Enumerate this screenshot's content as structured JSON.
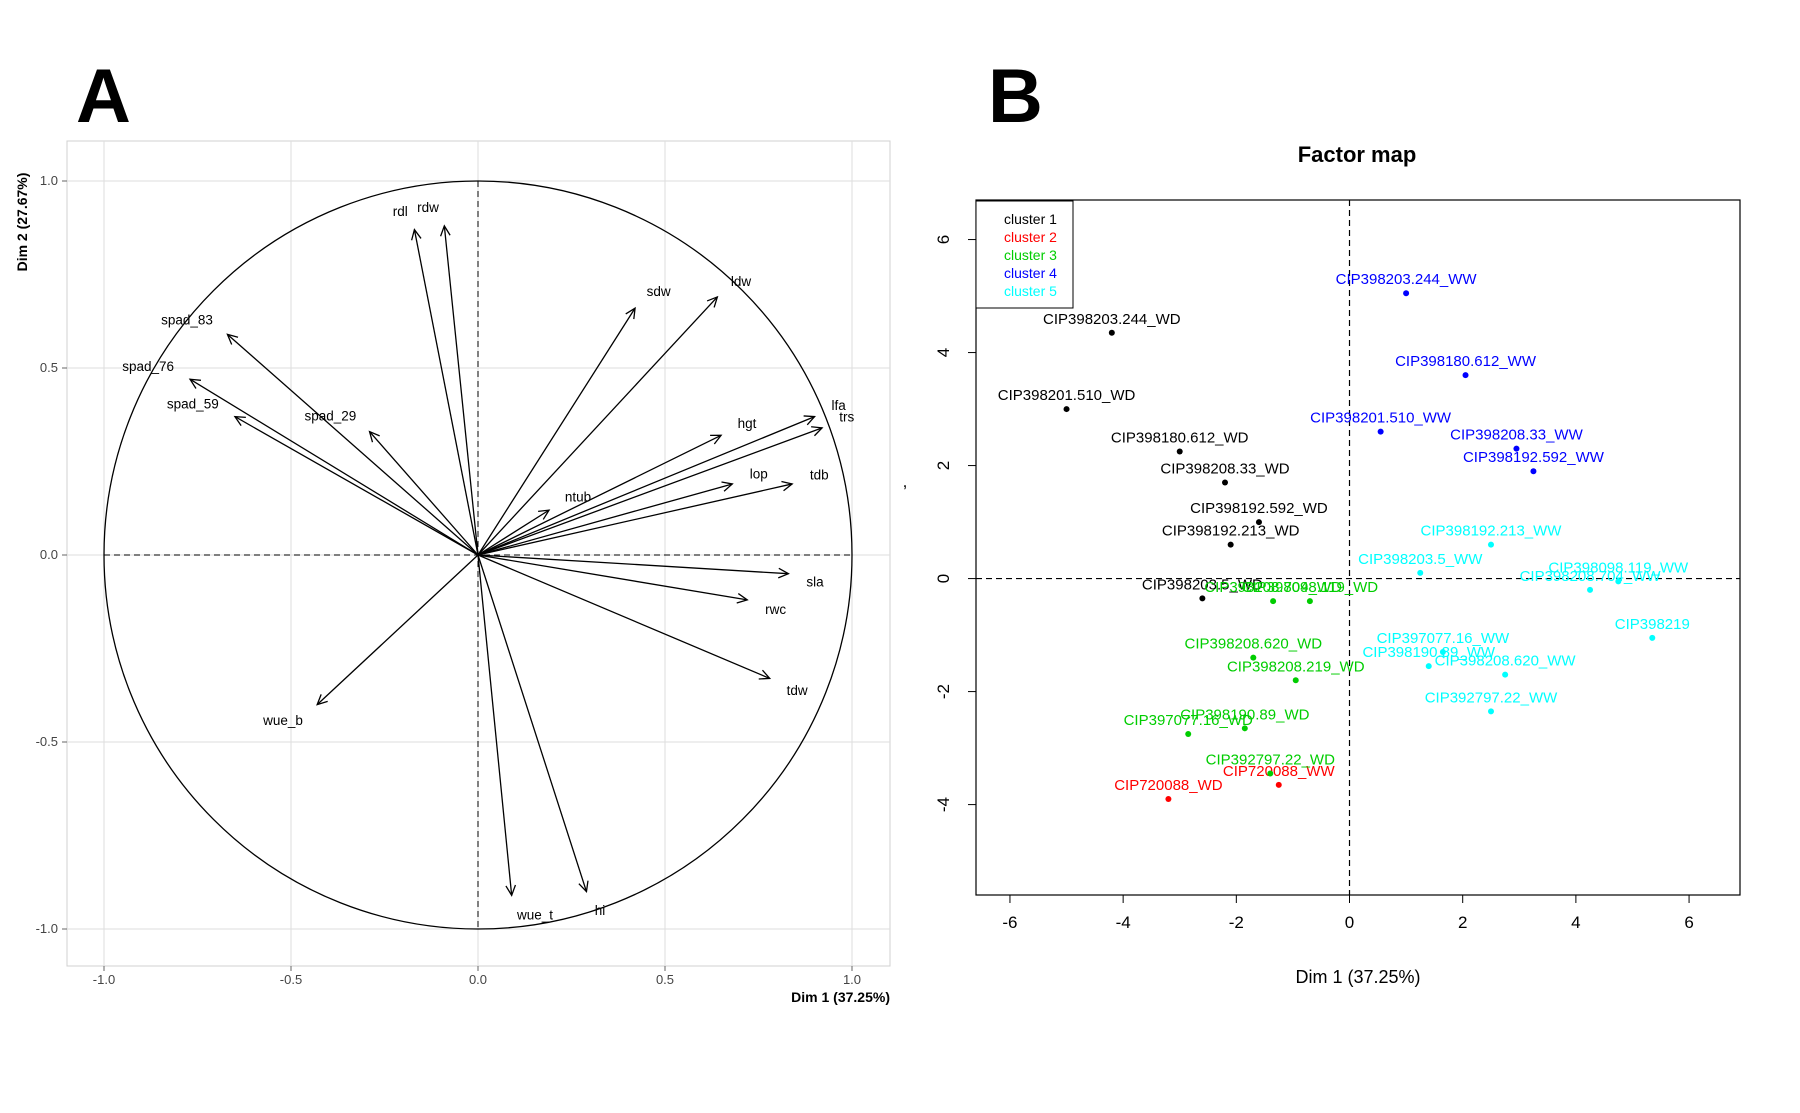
{
  "chart_data": [
    {
      "panel": "A",
      "type": "scatter",
      "subtype": "pca-variables-correlation-circle",
      "xlabel": "Dim 1 (37.25%)",
      "ylabel": "Dim 2 (27.67%)",
      "xlim": [
        -1.0,
        1.0
      ],
      "ylim": [
        -1.0,
        1.0
      ],
      "xticks": [
        "-1.0",
        "-0.5",
        "0.0",
        "0.5",
        "1.0"
      ],
      "yticks": [
        "1.0",
        "0.5",
        "0.0",
        "-0.5",
        "-1.0"
      ],
      "grid": true,
      "variables": [
        {
          "name": "rdl",
          "x": -0.17,
          "y": 0.87
        },
        {
          "name": "rdw",
          "x": -0.09,
          "y": 0.88
        },
        {
          "name": "spad_83",
          "x": -0.67,
          "y": 0.59
        },
        {
          "name": "spad_76",
          "x": -0.77,
          "y": 0.47
        },
        {
          "name": "spad_59",
          "x": -0.65,
          "y": 0.37
        },
        {
          "name": "spad_29",
          "x": -0.29,
          "y": 0.33
        },
        {
          "name": "sdw",
          "x": 0.42,
          "y": 0.66
        },
        {
          "name": "ldw",
          "x": 0.64,
          "y": 0.69
        },
        {
          "name": "hgt",
          "x": 0.65,
          "y": 0.32
        },
        {
          "name": "lfa",
          "x": 0.9,
          "y": 0.37
        },
        {
          "name": "trs",
          "x": 0.92,
          "y": 0.34
        },
        {
          "name": "ntub",
          "x": 0.19,
          "y": 0.12
        },
        {
          "name": "lop",
          "x": 0.68,
          "y": 0.19
        },
        {
          "name": "tdb",
          "x": 0.84,
          "y": 0.19
        },
        {
          "name": "sla",
          "x": 0.83,
          "y": -0.05
        },
        {
          "name": "rwc",
          "x": 0.72,
          "y": -0.12
        },
        {
          "name": "tdw",
          "x": 0.78,
          "y": -0.33
        },
        {
          "name": "wue_b",
          "x": -0.43,
          "y": -0.4
        },
        {
          "name": "wue_t",
          "x": 0.09,
          "y": -0.91
        },
        {
          "name": "hi",
          "x": 0.29,
          "y": -0.9
        }
      ]
    },
    {
      "panel": "B",
      "type": "scatter",
      "title": "Factor map",
      "xlabel": "Dim 1 (37.25%)",
      "ylabel": "",
      "xlim": [
        -6.6,
        6.9
      ],
      "ylim": [
        -5.6,
        6.7
      ],
      "xticks": [
        "-6",
        "-4",
        "-2",
        "0",
        "2",
        "4",
        "6"
      ],
      "yticks": [
        "6",
        "4",
        "2",
        "0",
        "-2",
        "-4"
      ],
      "stray_tick_mark": ",",
      "legend_position": "top-left",
      "clusters": [
        {
          "name": "cluster 1",
          "color": "#000000"
        },
        {
          "name": "cluster 2",
          "color": "#ff0000"
        },
        {
          "name": "cluster 3",
          "color": "#00cd00"
        },
        {
          "name": "cluster 4",
          "color": "#0000ff"
        },
        {
          "name": "cluster 5",
          "color": "#00ffff"
        }
      ],
      "points": [
        {
          "label": "CIP398203.244_WD",
          "cluster": 1,
          "x": -4.2,
          "y": 4.35
        },
        {
          "label": "CIP398201.510_WD",
          "cluster": 1,
          "x": -5.0,
          "y": 3.0
        },
        {
          "label": "CIP398180.612_WD",
          "cluster": 1,
          "x": -3.0,
          "y": 2.25
        },
        {
          "label": "CIP398208.33_WD",
          "cluster": 1,
          "x": -2.2,
          "y": 1.7
        },
        {
          "label": "CIP398192.592_WD",
          "cluster": 1,
          "x": -1.6,
          "y": 1.0
        },
        {
          "label": "CIP398192.213_WD",
          "cluster": 1,
          "x": -2.1,
          "y": 0.6
        },
        {
          "label": "CIP398203.5_WD",
          "cluster": 1,
          "x": -2.6,
          "y": -0.35
        },
        {
          "label": "CIP720088_WD",
          "cluster": 2,
          "x": -3.2,
          "y": -3.9
        },
        {
          "label": "CIP720088_WW",
          "cluster": 2,
          "x": -1.25,
          "y": -3.65
        },
        {
          "label": "CIP398208.704_WD",
          "cluster": 3,
          "x": -1.35,
          "y": -0.4
        },
        {
          "label": "CIP398098.119_WD",
          "cluster": 3,
          "x": -0.7,
          "y": -0.4
        },
        {
          "label": "CIP398208.620_WD",
          "cluster": 3,
          "x": -1.7,
          "y": -1.4
        },
        {
          "label": "CIP398208.219_WD",
          "cluster": 3,
          "x": -0.95,
          "y": -1.8
        },
        {
          "label": "CIP398190.89_WD",
          "cluster": 3,
          "x": -1.85,
          "y": -2.65
        },
        {
          "label": "CIP397077.16_WD",
          "cluster": 3,
          "x": -2.85,
          "y": -2.75
        },
        {
          "label": "CIP392797.22_WD",
          "cluster": 3,
          "x": -1.4,
          "y": -3.45
        },
        {
          "label": "CIP398203.244_WW",
          "cluster": 4,
          "x": 1.0,
          "y": 5.05
        },
        {
          "label": "CIP398180.612_WW",
          "cluster": 4,
          "x": 2.05,
          "y": 3.6
        },
        {
          "label": "CIP398201.510_WW",
          "cluster": 4,
          "x": 0.55,
          "y": 2.6
        },
        {
          "label": "CIP398208.33_WW",
          "cluster": 4,
          "x": 2.95,
          "y": 2.3
        },
        {
          "label": "CIP398192.592_WW",
          "cluster": 4,
          "x": 3.25,
          "y": 1.9
        },
        {
          "label": "CIP398192.213_WW",
          "cluster": 5,
          "x": 2.5,
          "y": 0.6
        },
        {
          "label": "CIP398203.5_WW",
          "cluster": 5,
          "x": 1.25,
          "y": 0.1
        },
        {
          "label": "CIP398098.119_WW",
          "cluster": 5,
          "x": 4.75,
          "y": -0.05
        },
        {
          "label": "CIP398208.704_WW",
          "cluster": 5,
          "x": 4.25,
          "y": -0.2
        },
        {
          "label": "CIP397077.16_WW",
          "cluster": 5,
          "x": 1.65,
          "y": -1.3
        },
        {
          "label": "CIP398219",
          "cluster": 5,
          "x": 5.35,
          "y": -1.05
        },
        {
          "label": "CIP398190.89_WW",
          "cluster": 5,
          "x": 1.4,
          "y": -1.55
        },
        {
          "label": "CIP398208.620_WW",
          "cluster": 5,
          "x": 2.75,
          "y": -1.7
        },
        {
          "label": "CIP392797.22_WW",
          "cluster": 5,
          "x": 2.5,
          "y": -2.35
        }
      ]
    }
  ],
  "panel_labels": {
    "a": "A",
    "b": "B"
  }
}
